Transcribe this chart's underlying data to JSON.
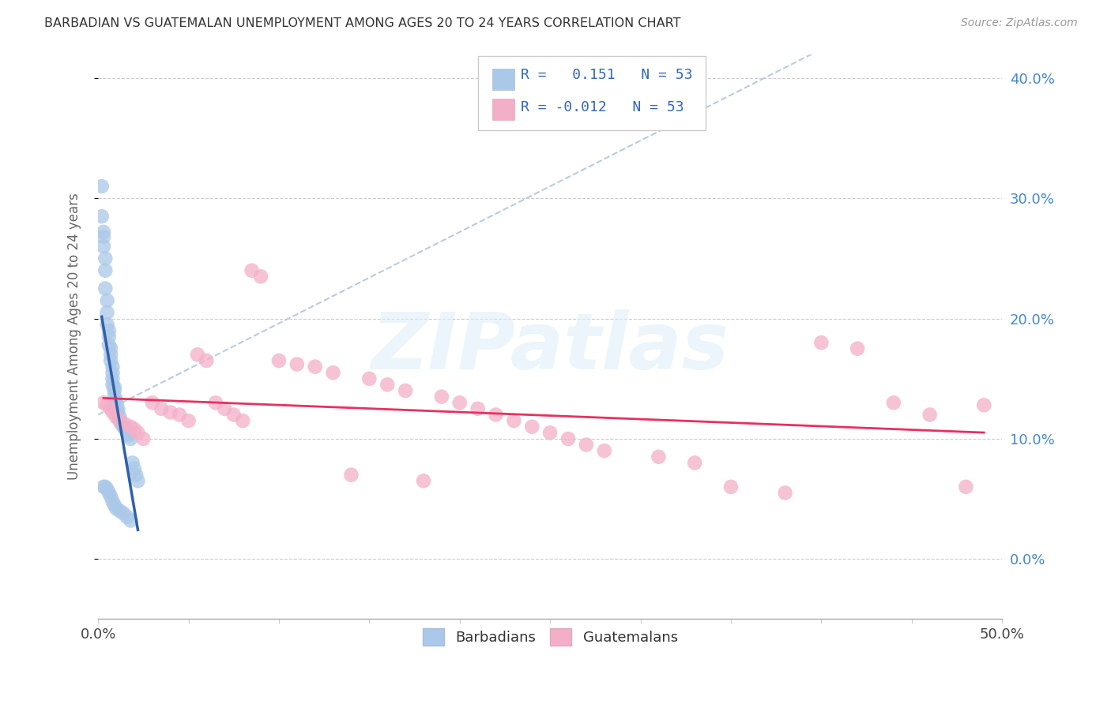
{
  "title": "BARBADIAN VS GUATEMALAN UNEMPLOYMENT AMONG AGES 20 TO 24 YEARS CORRELATION CHART",
  "source": "Source: ZipAtlas.com",
  "ylabel": "Unemployment Among Ages 20 to 24 years",
  "xlim": [
    0.0,
    0.5
  ],
  "ylim": [
    -0.05,
    0.42
  ],
  "xticks": [
    0.0,
    0.05,
    0.1,
    0.15,
    0.2,
    0.25,
    0.3,
    0.35,
    0.4,
    0.45,
    0.5
  ],
  "xtick_labels_show": [
    "0.0%",
    "",
    "",
    "",
    "",
    "",
    "",
    "",
    "",
    "",
    "50.0%"
  ],
  "yticks": [
    0.0,
    0.1,
    0.2,
    0.3,
    0.4
  ],
  "ytick_labels": [
    "0.0%",
    "10.0%",
    "20.0%",
    "30.0%",
    "40.0%"
  ],
  "barbadian_color": "#aac8e8",
  "guatemalan_color": "#f4afc8",
  "barbadian_line_color": "#3060a8",
  "guatemalan_line_color": "#e83060",
  "dashed_line_color": "#b0c8d8",
  "R_barbadian": 0.151,
  "N_barbadian": 53,
  "R_guatemalan": -0.012,
  "N_guatemalan": 53,
  "barbadian_x": [
    0.002,
    0.002,
    0.003,
    0.003,
    0.003,
    0.004,
    0.004,
    0.004,
    0.005,
    0.005,
    0.005,
    0.006,
    0.006,
    0.006,
    0.007,
    0.007,
    0.007,
    0.008,
    0.008,
    0.008,
    0.008,
    0.009,
    0.009,
    0.009,
    0.01,
    0.01,
    0.01,
    0.011,
    0.011,
    0.012,
    0.012,
    0.013,
    0.014,
    0.015,
    0.016,
    0.017,
    0.018,
    0.019,
    0.02,
    0.021,
    0.022,
    0.003,
    0.004,
    0.005,
    0.006,
    0.007,
    0.008,
    0.009,
    0.01,
    0.012,
    0.014,
    0.016,
    0.018
  ],
  "barbadian_y": [
    0.31,
    0.285,
    0.272,
    0.268,
    0.26,
    0.25,
    0.24,
    0.225,
    0.215,
    0.205,
    0.195,
    0.19,
    0.185,
    0.178,
    0.175,
    0.17,
    0.165,
    0.16,
    0.155,
    0.15,
    0.145,
    0.143,
    0.14,
    0.135,
    0.132,
    0.13,
    0.128,
    0.125,
    0.122,
    0.118,
    0.115,
    0.112,
    0.11,
    0.108,
    0.105,
    0.103,
    0.1,
    0.08,
    0.075,
    0.07,
    0.065,
    0.06,
    0.06,
    0.058,
    0.055,
    0.052,
    0.048,
    0.045,
    0.042,
    0.04,
    0.038,
    0.035,
    0.032
  ],
  "guatemalan_x": [
    0.003,
    0.005,
    0.007,
    0.008,
    0.01,
    0.012,
    0.015,
    0.018,
    0.02,
    0.022,
    0.025,
    0.03,
    0.035,
    0.04,
    0.045,
    0.05,
    0.055,
    0.06,
    0.065,
    0.07,
    0.075,
    0.08,
    0.085,
    0.09,
    0.1,
    0.11,
    0.12,
    0.13,
    0.14,
    0.15,
    0.16,
    0.17,
    0.18,
    0.19,
    0.2,
    0.21,
    0.22,
    0.23,
    0.24,
    0.25,
    0.26,
    0.27,
    0.28,
    0.31,
    0.33,
    0.35,
    0.38,
    0.4,
    0.42,
    0.44,
    0.46,
    0.48,
    0.49
  ],
  "guatemalan_y": [
    0.13,
    0.128,
    0.125,
    0.122,
    0.118,
    0.115,
    0.112,
    0.11,
    0.108,
    0.105,
    0.1,
    0.13,
    0.125,
    0.122,
    0.12,
    0.115,
    0.17,
    0.165,
    0.13,
    0.125,
    0.12,
    0.115,
    0.24,
    0.235,
    0.165,
    0.162,
    0.16,
    0.155,
    0.07,
    0.15,
    0.145,
    0.14,
    0.065,
    0.135,
    0.13,
    0.125,
    0.12,
    0.115,
    0.11,
    0.105,
    0.1,
    0.095,
    0.09,
    0.085,
    0.08,
    0.06,
    0.055,
    0.18,
    0.175,
    0.13,
    0.12,
    0.06,
    0.128
  ]
}
